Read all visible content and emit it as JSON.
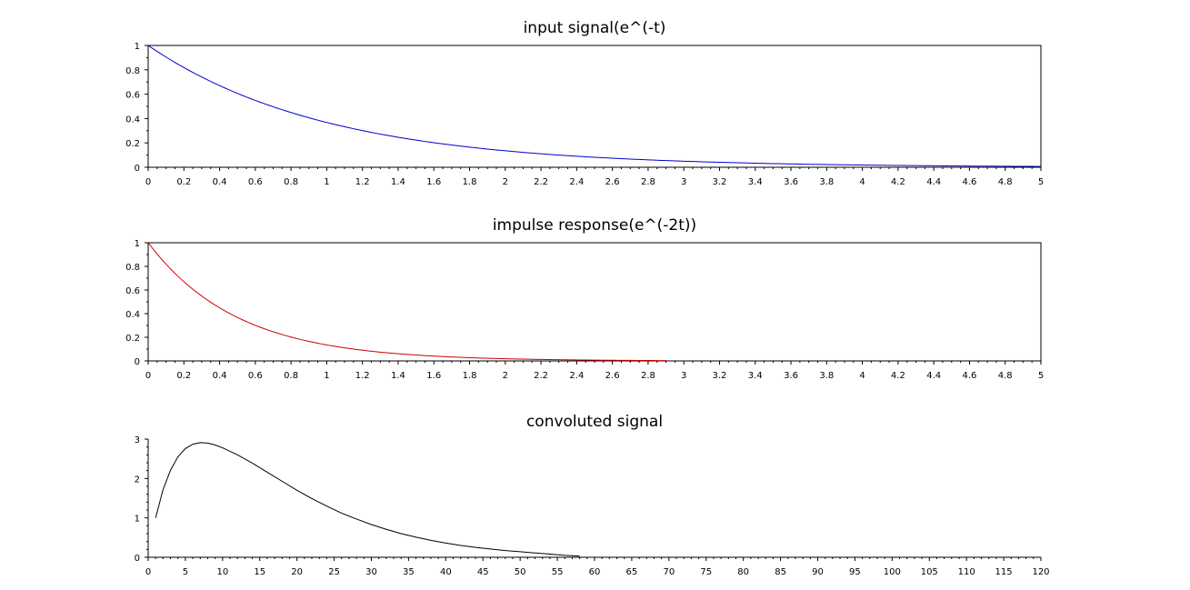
{
  "chart_data": [
    {
      "type": "line",
      "title": "input signal(e^(-t)",
      "xlabel": "",
      "ylabel": "",
      "xlim": [
        0,
        5
      ],
      "ylim": [
        0,
        1
      ],
      "x_ticks": [
        "0",
        "0.2",
        "0.4",
        "0.6",
        "0.8",
        "1",
        "1.2",
        "1.4",
        "1.6",
        "1.8",
        "2",
        "2.2",
        "2.4",
        "2.6",
        "2.8",
        "3",
        "3.2",
        "3.4",
        "3.6",
        "3.8",
        "4",
        "4.2",
        "4.4",
        "4.6",
        "4.8",
        "5"
      ],
      "y_ticks": [
        "0",
        "0.2",
        "0.4",
        "0.6",
        "0.8",
        "1"
      ],
      "grid": false,
      "boxed": true,
      "series": [
        {
          "color": "#0000cc",
          "x": [
            0,
            0.25,
            0.5,
            0.75,
            1,
            1.25,
            1.5,
            1.75,
            2,
            2.25,
            2.5,
            2.75,
            3,
            3.25,
            3.5,
            3.75,
            4,
            4.25,
            4.5,
            4.75,
            5
          ],
          "y": [
            1,
            0.779,
            0.607,
            0.472,
            0.368,
            0.287,
            0.223,
            0.174,
            0.135,
            0.105,
            0.082,
            0.064,
            0.05,
            0.039,
            0.03,
            0.024,
            0.018,
            0.014,
            0.011,
            0.009,
            0.007
          ]
        }
      ]
    },
    {
      "type": "line",
      "title": "impulse response(e^(-2t))",
      "xlabel": "",
      "ylabel": "",
      "xlim": [
        0,
        5
      ],
      "ylim": [
        0,
        1
      ],
      "x_ticks": [
        "0",
        "0.2",
        "0.4",
        "0.6",
        "0.8",
        "1",
        "1.2",
        "1.4",
        "1.6",
        "1.8",
        "2",
        "2.2",
        "2.4",
        "2.6",
        "2.8",
        "3",
        "3.2",
        "3.4",
        "3.6",
        "3.8",
        "4",
        "4.2",
        "4.4",
        "4.6",
        "4.8",
        "5"
      ],
      "y_ticks": [
        "0",
        "0.2",
        "0.4",
        "0.6",
        "0.8",
        "1"
      ],
      "grid": false,
      "boxed": true,
      "series": [
        {
          "color": "#cc0000",
          "x": [
            0,
            0.1,
            0.2,
            0.3,
            0.4,
            0.5,
            0.6,
            0.8,
            1.0,
            1.2,
            1.4,
            1.6,
            1.8,
            2.0,
            2.2,
            2.4,
            2.6,
            2.8,
            2.9
          ],
          "y": [
            1,
            0.819,
            0.67,
            0.549,
            0.449,
            0.368,
            0.301,
            0.202,
            0.135,
            0.091,
            0.061,
            0.041,
            0.027,
            0.018,
            0.012,
            0.008,
            0.006,
            0.004,
            0.003
          ]
        }
      ]
    },
    {
      "type": "line",
      "title": "convoluted signal",
      "xlabel": "",
      "ylabel": "",
      "xlim": [
        0,
        120
      ],
      "ylim": [
        0,
        3
      ],
      "x_ticks": [
        "0",
        "5",
        "10",
        "15",
        "20",
        "25",
        "30",
        "35",
        "40",
        "45",
        "50",
        "55",
        "60",
        "65",
        "70",
        "75",
        "80",
        "85",
        "90",
        "95",
        "100",
        "105",
        "110",
        "115",
        "120"
      ],
      "y_ticks": [
        "0",
        "1",
        "2",
        "3"
      ],
      "grid": false,
      "boxed": false,
      "series": [
        {
          "color": "#000000",
          "x": [
            1,
            2,
            3,
            4,
            5,
            6,
            7,
            8,
            9,
            10,
            12,
            14,
            16,
            18,
            20,
            22,
            24,
            26,
            28,
            30,
            32,
            34,
            36,
            38,
            40,
            42,
            44,
            46,
            48,
            50,
            52,
            54,
            56,
            58
          ],
          "y": [
            1.0,
            1.72,
            2.21,
            2.55,
            2.76,
            2.87,
            2.91,
            2.9,
            2.85,
            2.78,
            2.6,
            2.39,
            2.16,
            1.93,
            1.7,
            1.49,
            1.3,
            1.12,
            0.97,
            0.83,
            0.71,
            0.6,
            0.51,
            0.43,
            0.36,
            0.3,
            0.25,
            0.21,
            0.17,
            0.14,
            0.11,
            0.08,
            0.05,
            0.03
          ]
        }
      ]
    }
  ]
}
